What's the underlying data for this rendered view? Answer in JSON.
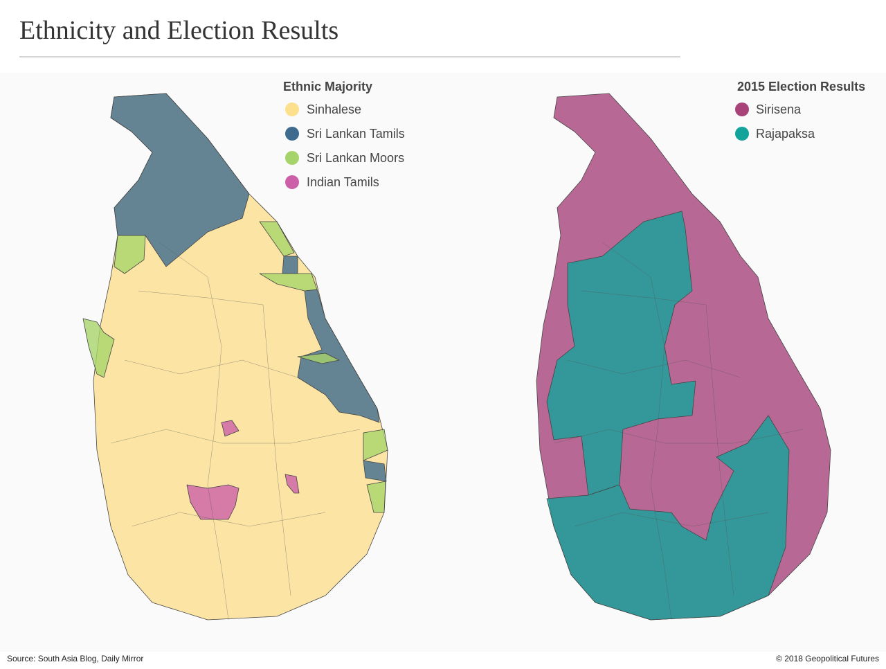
{
  "header": {
    "title": "Ethnicity and Election Results"
  },
  "maps": [
    {
      "legend": {
        "title": "Ethnic Majority",
        "items": [
          {
            "label": "Sinhalese",
            "color": "#fde08e"
          },
          {
            "label": "Sri Lankan Tamils",
            "color": "#3f6b8f"
          },
          {
            "label": "Sri Lankan Moors",
            "color": "#a7d46a"
          },
          {
            "label": "Indian Tamils",
            "color": "#cc5fa7"
          }
        ]
      }
    },
    {
      "legend": {
        "title": "2015 Election Results",
        "items": [
          {
            "label": "Sirisena",
            "color": "#a8437a"
          },
          {
            "label": "Rajapaksa",
            "color": "#13a39a"
          }
        ]
      }
    }
  ],
  "footer": {
    "source": "Source: South Asia Blog, Daily Mirror",
    "credit": "© 2018 Geopolitical Futures"
  }
}
